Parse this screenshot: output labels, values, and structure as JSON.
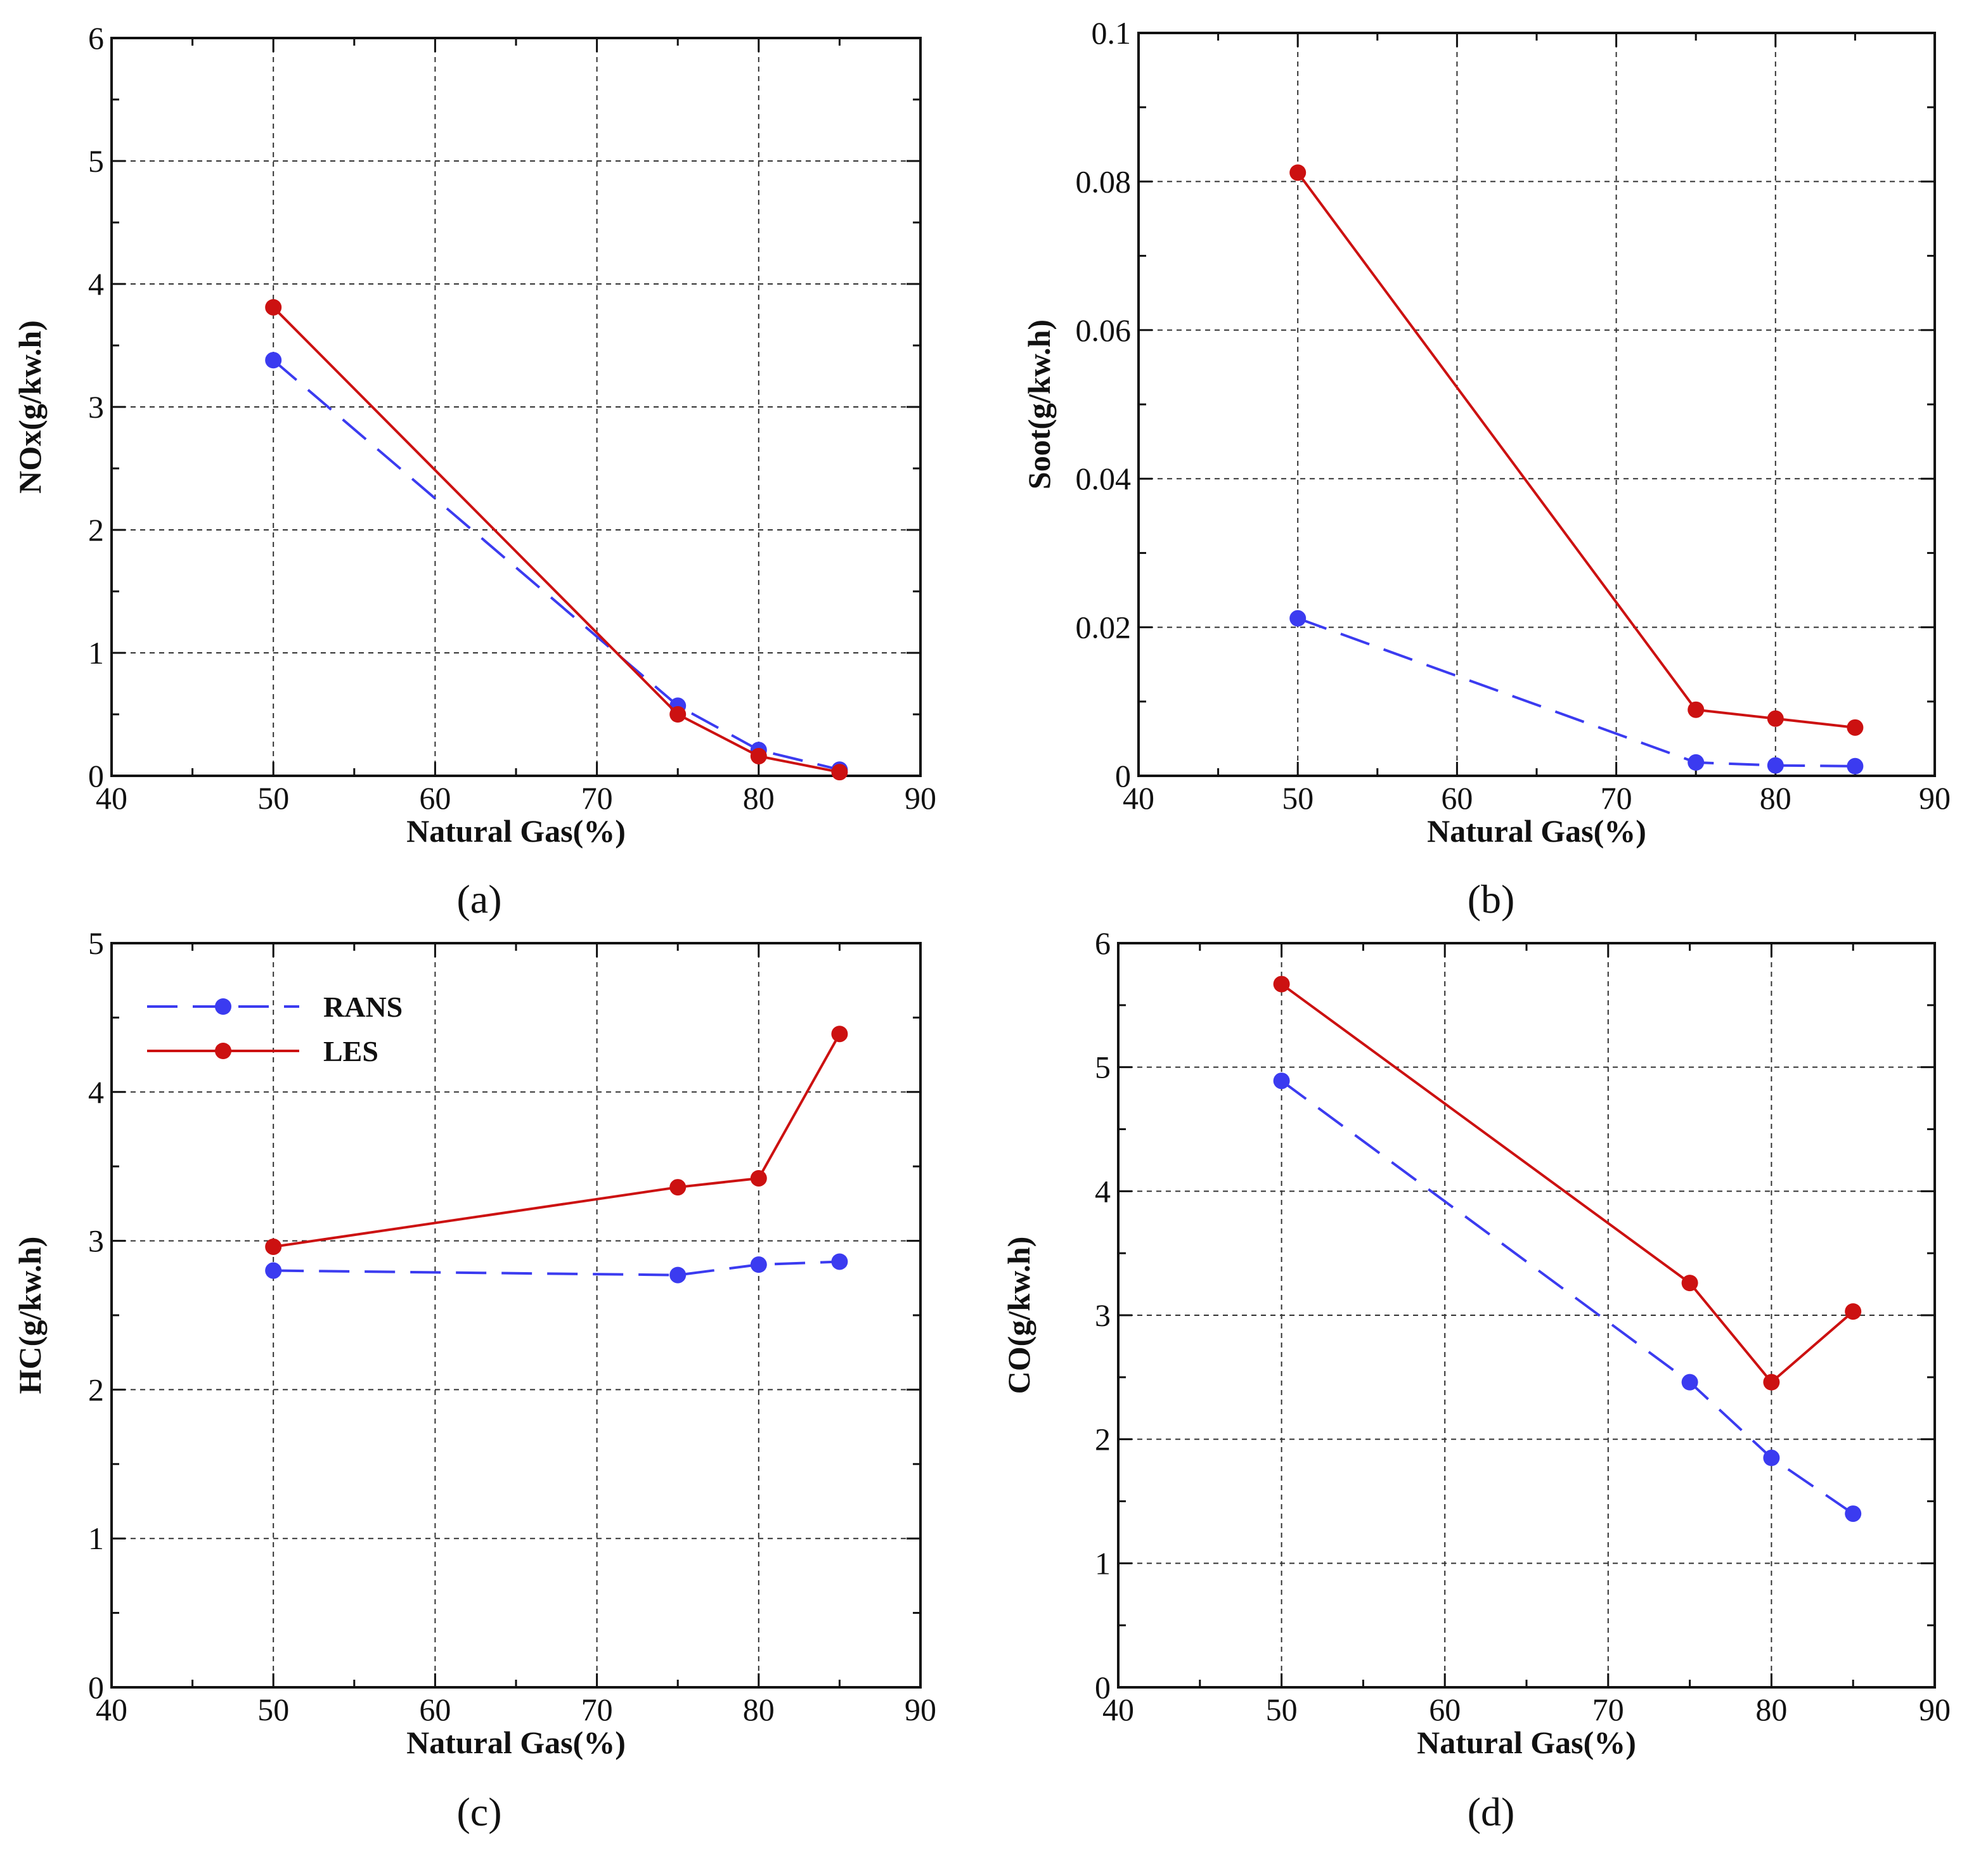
{
  "colors": {
    "rans": "#3b3bf0",
    "les": "#cc1111"
  },
  "legend": [
    {
      "series": "RANS",
      "label": "RANS"
    },
    {
      "series": "LES",
      "label": "LES"
    }
  ],
  "chart_data": [
    {
      "type": "line",
      "panel_label": "(a)",
      "xlabel": "Natural Gas(%)",
      "ylabel": "NOx(g/kw.h)",
      "xlim": [
        40,
        90
      ],
      "ylim": [
        0,
        6
      ],
      "x_ticks": [
        40,
        50,
        60,
        70,
        80,
        90
      ],
      "x_tick_labels": [
        "40",
        "50",
        "60",
        "70",
        "80",
        "90"
      ],
      "y_ticks": [
        0,
        1,
        2,
        3,
        4,
        5,
        6
      ],
      "y_tick_labels": [
        "0",
        "1",
        "2",
        "3",
        "4",
        "5",
        "6"
      ],
      "x": [
        50,
        75,
        80,
        85
      ],
      "series": [
        {
          "name": "RANS",
          "values": [
            3.38,
            0.57,
            0.21,
            0.05
          ]
        },
        {
          "name": "LES",
          "values": [
            3.81,
            0.5,
            0.16,
            0.03
          ]
        }
      ]
    },
    {
      "type": "line",
      "panel_label": "(b)",
      "xlabel": "Natural Gas(%)",
      "ylabel": "Soot(g/kw.h)",
      "xlim": [
        40,
        90
      ],
      "ylim": [
        0,
        0.1
      ],
      "x_ticks": [
        40,
        50,
        60,
        70,
        80,
        90
      ],
      "x_tick_labels": [
        "40",
        "50",
        "60",
        "70",
        "80",
        "90"
      ],
      "y_ticks": [
        0,
        0.02,
        0.04,
        0.06,
        0.08,
        0.1
      ],
      "y_tick_labels": [
        "0",
        "0.02",
        "0.04",
        "0.06",
        "0.08",
        "0.1"
      ],
      "x": [
        50,
        75,
        80,
        85
      ],
      "series": [
        {
          "name": "RANS",
          "values": [
            0.0212,
            0.0018,
            0.0014,
            0.0013
          ]
        },
        {
          "name": "LES",
          "values": [
            0.0812,
            0.0089,
            0.0077,
            0.0065
          ]
        }
      ]
    },
    {
      "type": "line",
      "panel_label": "(c)",
      "xlabel": "Natural Gas(%)",
      "ylabel": "HC(g/kw.h)",
      "xlim": [
        40,
        90
      ],
      "ylim": [
        0,
        5
      ],
      "x_ticks": [
        40,
        50,
        60,
        70,
        80,
        90
      ],
      "x_tick_labels": [
        "40",
        "50",
        "60",
        "70",
        "80",
        "90"
      ],
      "y_ticks": [
        0,
        1,
        2,
        3,
        4,
        5
      ],
      "y_tick_labels": [
        "0",
        "1",
        "2",
        "3",
        "4",
        "5"
      ],
      "x": [
        50,
        75,
        80,
        85
      ],
      "series": [
        {
          "name": "RANS",
          "values": [
            2.8,
            2.77,
            2.84,
            2.86
          ]
        },
        {
          "name": "LES",
          "values": [
            2.96,
            3.36,
            3.42,
            4.39
          ]
        }
      ],
      "legend_position": "top-left"
    },
    {
      "type": "line",
      "panel_label": "(d)",
      "xlabel": "Natural Gas(%)",
      "ylabel": "CO(g/kw.h)",
      "xlim": [
        40,
        90
      ],
      "ylim": [
        0,
        6
      ],
      "x_ticks": [
        40,
        50,
        60,
        70,
        80,
        90
      ],
      "x_tick_labels": [
        "40",
        "50",
        "60",
        "70",
        "80",
        "90"
      ],
      "y_ticks": [
        0,
        1,
        2,
        3,
        4,
        5,
        6
      ],
      "y_tick_labels": [
        "0",
        "1",
        "2",
        "3",
        "4",
        "5",
        "6"
      ],
      "x": [
        50,
        75,
        80,
        85
      ],
      "series": [
        {
          "name": "RANS",
          "values": [
            4.89,
            2.46,
            1.85,
            1.4
          ]
        },
        {
          "name": "LES",
          "values": [
            5.67,
            3.26,
            2.46,
            3.03
          ]
        }
      ]
    }
  ]
}
